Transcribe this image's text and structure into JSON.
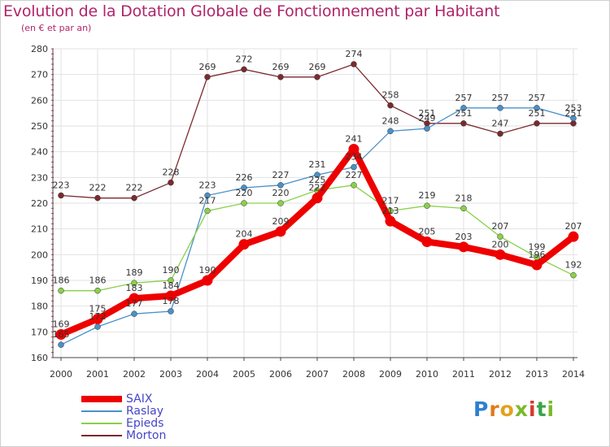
{
  "title": "Evolution de la Dotation Globale de Fonctionnement par Habitant",
  "subtitle": "(en € et par an)",
  "logo_text": "Proxiti",
  "colors": {
    "title": "#b0246a",
    "axis": "#d4326e",
    "grid": "#e2e2e2",
    "legend_text": "#4545c8"
  },
  "chart_data": {
    "type": "line",
    "title": "Evolution de la Dotation Globale de Fonctionnement par Habitant",
    "subtitle": "(en € et par an)",
    "x": [
      "2000",
      "2001",
      "2002",
      "2003",
      "2004",
      "2005",
      "2006",
      "2007",
      "2008",
      "2009",
      "2010",
      "2011",
      "2012",
      "2013",
      "2014"
    ],
    "ylim": [
      160,
      280
    ],
    "yticks": [
      160,
      170,
      180,
      190,
      200,
      210,
      220,
      230,
      240,
      250,
      260,
      270,
      280
    ],
    "grid": true,
    "legend_position": "bottom-left",
    "series": [
      {
        "name": "Morton",
        "color": "#7a2a2e",
        "values": [
          223,
          222,
          222,
          228,
          269,
          272,
          269,
          269,
          274,
          258,
          251,
          251,
          247,
          251,
          251
        ]
      },
      {
        "name": "Raslay",
        "color": "#4a90c8",
        "values": [
          165,
          172,
          177,
          178,
          223,
          226,
          227,
          231,
          234,
          248,
          249,
          257,
          257,
          257,
          253
        ]
      },
      {
        "name": "Epieds",
        "color": "#8ad04a",
        "values": [
          186,
          186,
          189,
          190,
          217,
          220,
          220,
          225,
          227,
          217,
          219,
          218,
          207,
          199,
          192
        ]
      },
      {
        "name": "SAIX",
        "color": "#ee0000",
        "values": [
          169,
          175,
          183,
          184,
          190,
          204,
          209,
          222,
          241,
          213,
          205,
          203,
          200,
          196,
          207
        ]
      }
    ],
    "legend": [
      "SAIX",
      "Raslay",
      "Epieds",
      "Morton"
    ]
  }
}
